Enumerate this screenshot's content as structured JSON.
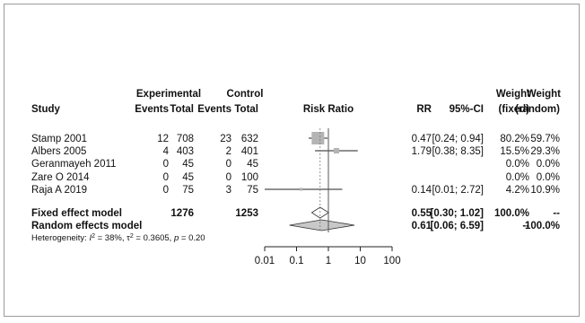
{
  "chart_data": {
    "type": "forest",
    "headers": {
      "study": "Study",
      "experimental": "Experimental",
      "control": "Control",
      "events": "Events",
      "total": "Total",
      "risk_ratio": "Risk Ratio",
      "rr": "RR",
      "ci": "95%-CI",
      "weight": "Weight",
      "fixed": "(fixed)",
      "random": "(random)"
    },
    "studies": [
      {
        "name": "Stamp 2001",
        "e_events": "12",
        "e_total": "708",
        "c_events": "23",
        "c_total": "632",
        "rr": 0.47,
        "lower": 0.24,
        "upper": 0.94,
        "rr_text": "0.47",
        "ci_text": "[0.24; 0.94]",
        "w_fixed": "80.2%",
        "w_random": "59.7%",
        "weight": 80.2,
        "has_estimate": true
      },
      {
        "name": "Albers 2005",
        "e_events": "4",
        "e_total": "403",
        "c_events": "2",
        "c_total": "401",
        "rr": 1.79,
        "lower": 0.38,
        "upper": 8.35,
        "rr_text": "1.79",
        "ci_text": "[0.38; 8.35]",
        "w_fixed": "15.5%",
        "w_random": "29.3%",
        "weight": 15.5,
        "has_estimate": true
      },
      {
        "name": "Geranmayeh 2011",
        "e_events": "0",
        "e_total": "45",
        "c_events": "0",
        "c_total": "45",
        "rr": null,
        "lower": null,
        "upper": null,
        "rr_text": "",
        "ci_text": "",
        "w_fixed": "0.0%",
        "w_random": "0.0%",
        "weight": 0,
        "has_estimate": false
      },
      {
        "name": "Zare O 2014",
        "e_events": "0",
        "e_total": "45",
        "c_events": "0",
        "c_total": "100",
        "rr": null,
        "lower": null,
        "upper": null,
        "rr_text": "",
        "ci_text": "",
        "w_fixed": "0.0%",
        "w_random": "0.0%",
        "weight": 0,
        "has_estimate": false
      },
      {
        "name": "Raja A 2019",
        "e_events": "0",
        "e_total": "75",
        "c_events": "3",
        "c_total": "75",
        "rr": 0.14,
        "lower": 0.01,
        "upper": 2.72,
        "rr_text": "0.14",
        "ci_text": "[0.01; 2.72]",
        "w_fixed": "4.2%",
        "w_random": "10.9%",
        "weight": 4.2,
        "has_estimate": true
      }
    ],
    "pooled": [
      {
        "name": "Fixed effect model",
        "e_total": "1276",
        "c_total": "1253",
        "rr": 0.55,
        "lower": 0.3,
        "upper": 1.02,
        "rr_text": "0.55",
        "ci_text": "[0.30; 1.02]",
        "w_fixed": "100.0%",
        "w_random": "--"
      },
      {
        "name": "Random effects model",
        "e_total": "",
        "c_total": "",
        "rr": 0.61,
        "lower": 0.06,
        "upper": 6.59,
        "rr_text": "0.61",
        "ci_text": "[0.06; 6.59]",
        "w_fixed": "--",
        "w_random": "100.0%"
      }
    ],
    "heterogeneity": {
      "prefix": "Heterogeneity: ",
      "i2_symbol": "I",
      "i2_value": " = 38%, ",
      "tau_symbol": "τ",
      "tau_value": " = 0.3605, ",
      "p_symbol": "p",
      "p_value": " = 0.20"
    },
    "x_axis": {
      "scale": "log",
      "ticks": [
        0.01,
        0.1,
        1,
        10,
        100
      ],
      "tick_labels": [
        "0.01",
        "0.1",
        "1",
        "10",
        "100"
      ],
      "xlim": [
        0.01,
        100
      ]
    },
    "colors": {
      "square": "#b4b4b4",
      "diamond_fixed": "#ffffff",
      "diamond_random": "#c8c8c8",
      "line": "#222222",
      "reference": "#555555"
    }
  }
}
